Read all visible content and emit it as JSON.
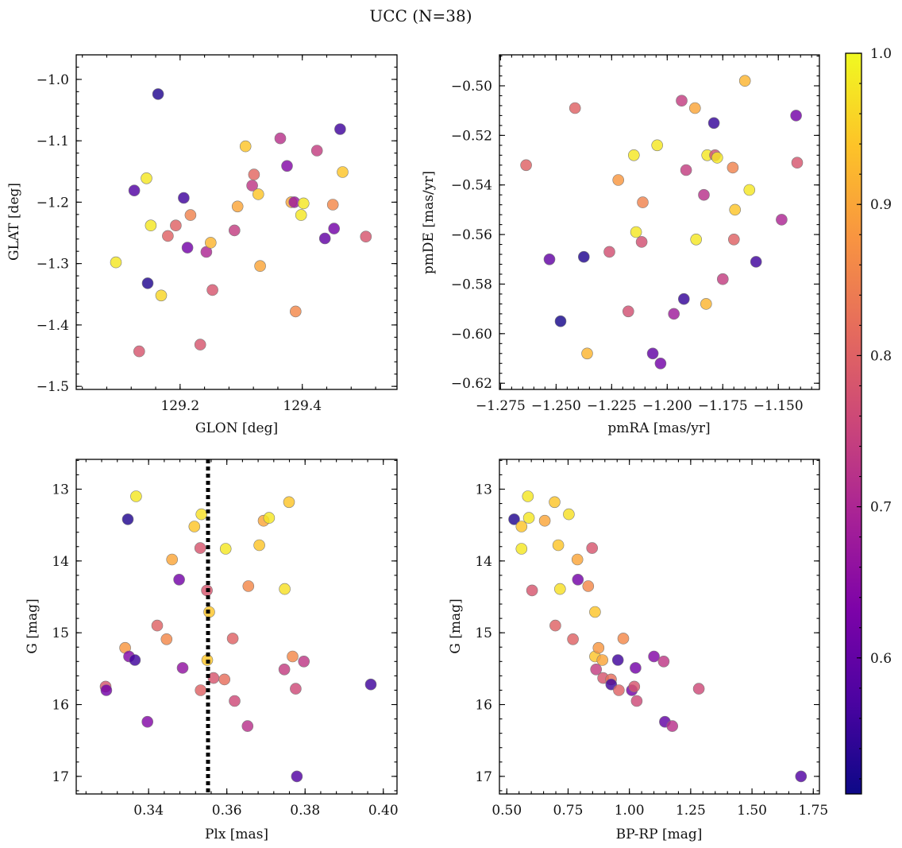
{
  "figure": {
    "title": "UCC (N=38)"
  },
  "colorbar": {
    "colormap": "plasma",
    "range": [
      0.51,
      1.0
    ],
    "ticks": [
      0.6,
      0.7,
      0.8,
      0.9,
      1.0
    ],
    "tick_labels": [
      "0.6",
      "0.7",
      "0.8",
      "0.9",
      "1.0"
    ]
  },
  "chart_data": [
    {
      "type": "scatter",
      "title": "",
      "xlabel": "GLON [deg]",
      "ylabel": "GLAT [deg]",
      "xlim": [
        129.03,
        129.555
      ],
      "ylim": [
        -1.505,
        -0.96
      ],
      "y_inverted": false,
      "xticks": [
        129.2,
        129.4
      ],
      "xtick_labels": [
        "129.2",
        "129.4"
      ],
      "yticks": [
        -1.5,
        -1.4,
        -1.3,
        -1.2,
        -1.1,
        -1.0
      ],
      "ytick_labels": [
        "−1.5",
        "−1.4",
        "−1.3",
        "−1.2",
        "−1.1",
        "−1.0"
      ],
      "points": [
        {
          "x": 129.095,
          "y": -1.298,
          "c": 0.98
        },
        {
          "x": 129.125,
          "y": -1.181,
          "c": 0.58
        },
        {
          "x": 129.133,
          "y": -1.443,
          "c": 0.78
        },
        {
          "x": 129.145,
          "y": -1.161,
          "c": 0.98
        },
        {
          "x": 129.147,
          "y": -1.332,
          "c": 0.53
        },
        {
          "x": 129.152,
          "y": -1.238,
          "c": 0.98
        },
        {
          "x": 129.164,
          "y": -1.024,
          "c": 0.53
        },
        {
          "x": 129.169,
          "y": -1.352,
          "c": 0.96
        },
        {
          "x": 129.18,
          "y": -1.255,
          "c": 0.8
        },
        {
          "x": 129.193,
          "y": -1.238,
          "c": 0.8
        },
        {
          "x": 129.206,
          "y": -1.193,
          "c": 0.56
        },
        {
          "x": 129.212,
          "y": -1.274,
          "c": 0.62
        },
        {
          "x": 129.217,
          "y": -1.221,
          "c": 0.85
        },
        {
          "x": 129.233,
          "y": -1.432,
          "c": 0.78
        },
        {
          "x": 129.243,
          "y": -1.281,
          "c": 0.7
        },
        {
          "x": 129.25,
          "y": -1.266,
          "c": 0.92
        },
        {
          "x": 129.253,
          "y": -1.343,
          "c": 0.78
        },
        {
          "x": 129.289,
          "y": -1.246,
          "c": 0.74
        },
        {
          "x": 129.294,
          "y": -1.207,
          "c": 0.9
        },
        {
          "x": 129.307,
          "y": -1.109,
          "c": 0.94
        },
        {
          "x": 129.318,
          "y": -1.173,
          "c": 0.73
        },
        {
          "x": 129.321,
          "y": -1.155,
          "c": 0.81
        },
        {
          "x": 129.328,
          "y": -1.187,
          "c": 0.94
        },
        {
          "x": 129.331,
          "y": -1.304,
          "c": 0.9
        },
        {
          "x": 129.364,
          "y": -1.096,
          "c": 0.72
        },
        {
          "x": 129.375,
          "y": -1.141,
          "c": 0.64
        },
        {
          "x": 129.382,
          "y": -1.2,
          "c": 0.9
        },
        {
          "x": 129.387,
          "y": -1.2,
          "c": 0.67
        },
        {
          "x": 129.389,
          "y": -1.378,
          "c": 0.86
        },
        {
          "x": 129.398,
          "y": -1.221,
          "c": 0.98
        },
        {
          "x": 129.402,
          "y": -1.202,
          "c": 0.98
        },
        {
          "x": 129.424,
          "y": -1.116,
          "c": 0.74
        },
        {
          "x": 129.437,
          "y": -1.259,
          "c": 0.6
        },
        {
          "x": 129.45,
          "y": -1.204,
          "c": 0.86
        },
        {
          "x": 129.452,
          "y": -1.243,
          "c": 0.62
        },
        {
          "x": 129.462,
          "y": -1.081,
          "c": 0.56
        },
        {
          "x": 129.466,
          "y": -1.151,
          "c": 0.94
        },
        {
          "x": 129.504,
          "y": -1.256,
          "c": 0.78
        }
      ]
    },
    {
      "type": "scatter",
      "title": "",
      "xlabel": "pmRA [mas/yr]",
      "ylabel": "pmDE [mas/yr]",
      "xlim": [
        -1.2755,
        -1.1315
      ],
      "ylim": [
        -0.6225,
        -0.4875
      ],
      "y_inverted": false,
      "xticks": [
        -1.275,
        -1.25,
        -1.225,
        -1.2,
        -1.175,
        -1.15
      ],
      "xtick_labels": [
        "−1.275",
        "−1.250",
        "−1.225",
        "−1.200",
        "−1.175",
        "−1.150"
      ],
      "yticks": [
        -0.62,
        -0.6,
        -0.58,
        -0.56,
        -0.54,
        -0.52,
        -0.5
      ],
      "ytick_labels": [
        "−0.62",
        "−0.60",
        "−0.58",
        "−0.56",
        "−0.54",
        "−0.52",
        "−0.50"
      ],
      "points": [
        {
          "x": -1.2635,
          "y": -0.532,
          "c": 0.8
        },
        {
          "x": -1.253,
          "y": -0.57,
          "c": 0.6
        },
        {
          "x": -1.248,
          "y": -0.595,
          "c": 0.52
        },
        {
          "x": -1.2415,
          "y": -0.509,
          "c": 0.8
        },
        {
          "x": -1.2375,
          "y": -0.569,
          "c": 0.53
        },
        {
          "x": -1.236,
          "y": -0.608,
          "c": 0.92
        },
        {
          "x": -1.226,
          "y": -0.567,
          "c": 0.77
        },
        {
          "x": -1.222,
          "y": -0.538,
          "c": 0.88
        },
        {
          "x": -1.2175,
          "y": -0.591,
          "c": 0.77
        },
        {
          "x": -1.215,
          "y": -0.528,
          "c": 0.98
        },
        {
          "x": -1.214,
          "y": -0.559,
          "c": 0.98
        },
        {
          "x": -1.2115,
          "y": -0.563,
          "c": 0.77
        },
        {
          "x": -1.211,
          "y": -0.547,
          "c": 0.85
        },
        {
          "x": -1.2065,
          "y": -0.608,
          "c": 0.6
        },
        {
          "x": -1.2045,
          "y": -0.524,
          "c": 0.98
        },
        {
          "x": -1.203,
          "y": -0.612,
          "c": 0.62
        },
        {
          "x": -1.197,
          "y": -0.592,
          "c": 0.68
        },
        {
          "x": -1.1935,
          "y": -0.506,
          "c": 0.74
        },
        {
          "x": -1.1925,
          "y": -0.586,
          "c": 0.55
        },
        {
          "x": -1.1915,
          "y": -0.534,
          "c": 0.74
        },
        {
          "x": -1.1875,
          "y": -0.509,
          "c": 0.9
        },
        {
          "x": -1.187,
          "y": -0.562,
          "c": 0.98
        },
        {
          "x": -1.1835,
          "y": -0.544,
          "c": 0.72
        },
        {
          "x": -1.1825,
          "y": -0.588,
          "c": 0.92
        },
        {
          "x": -1.182,
          "y": -0.528,
          "c": 0.98
        },
        {
          "x": -1.179,
          "y": -0.515,
          "c": 0.55
        },
        {
          "x": -1.1785,
          "y": -0.528,
          "c": 0.77
        },
        {
          "x": -1.1775,
          "y": -0.529,
          "c": 0.98
        },
        {
          "x": -1.175,
          "y": -0.578,
          "c": 0.74
        },
        {
          "x": -1.1705,
          "y": -0.533,
          "c": 0.85
        },
        {
          "x": -1.17,
          "y": -0.562,
          "c": 0.8
        },
        {
          "x": -1.1695,
          "y": -0.55,
          "c": 0.94
        },
        {
          "x": -1.165,
          "y": -0.498,
          "c": 0.92
        },
        {
          "x": -1.163,
          "y": -0.542,
          "c": 0.98
        },
        {
          "x": -1.16,
          "y": -0.571,
          "c": 0.56
        },
        {
          "x": -1.1485,
          "y": -0.554,
          "c": 0.7
        },
        {
          "x": -1.142,
          "y": -0.512,
          "c": 0.62
        },
        {
          "x": -1.1415,
          "y": -0.531,
          "c": 0.78
        }
      ]
    },
    {
      "type": "scatter",
      "title": "",
      "xlabel": "Plx [mas]",
      "ylabel": "G [mag]",
      "xlim": [
        0.3215,
        0.4035
      ],
      "ylim": [
        17.245,
        12.585
      ],
      "y_inverted": true,
      "xticks": [
        0.34,
        0.36,
        0.38,
        0.4
      ],
      "xtick_labels": [
        "0.34",
        "0.36",
        "0.38",
        "0.40"
      ],
      "yticks": [
        13,
        14,
        15,
        16,
        17
      ],
      "ytick_labels": [
        "13",
        "14",
        "15",
        "16",
        "17"
      ],
      "reference_line": {
        "x": 0.3552,
        "style": "dotted",
        "color": "#000000"
      },
      "points": [
        {
          "x": 0.329,
          "y": 15.75,
          "c": 0.78
        },
        {
          "x": 0.3292,
          "y": 15.8,
          "c": 0.62
        },
        {
          "x": 0.334,
          "y": 15.21,
          "c": 0.88
        },
        {
          "x": 0.3347,
          "y": 13.42,
          "c": 0.53
        },
        {
          "x": 0.335,
          "y": 15.33,
          "c": 0.64
        },
        {
          "x": 0.3365,
          "y": 15.38,
          "c": 0.56
        },
        {
          "x": 0.3368,
          "y": 13.1,
          "c": 0.98
        },
        {
          "x": 0.3397,
          "y": 16.24,
          "c": 0.64
        },
        {
          "x": 0.3422,
          "y": 14.9,
          "c": 0.8
        },
        {
          "x": 0.3446,
          "y": 15.09,
          "c": 0.86
        },
        {
          "x": 0.346,
          "y": 13.98,
          "c": 0.9
        },
        {
          "x": 0.3478,
          "y": 14.26,
          "c": 0.62
        },
        {
          "x": 0.3487,
          "y": 15.49,
          "c": 0.66
        },
        {
          "x": 0.3517,
          "y": 13.52,
          "c": 0.94
        },
        {
          "x": 0.3532,
          "y": 13.82,
          "c": 0.78
        },
        {
          "x": 0.3533,
          "y": 15.8,
          "c": 0.8
        },
        {
          "x": 0.3535,
          "y": 13.35,
          "c": 0.97
        },
        {
          "x": 0.3549,
          "y": 14.41,
          "c": 0.78
        },
        {
          "x": 0.355,
          "y": 15.38,
          "c": 0.94
        },
        {
          "x": 0.3555,
          "y": 14.71,
          "c": 0.94
        },
        {
          "x": 0.3566,
          "y": 15.63,
          "c": 0.78
        },
        {
          "x": 0.3594,
          "y": 15.65,
          "c": 0.82
        },
        {
          "x": 0.3597,
          "y": 13.83,
          "c": 0.98
        },
        {
          "x": 0.3615,
          "y": 15.08,
          "c": 0.8
        },
        {
          "x": 0.362,
          "y": 15.95,
          "c": 0.76
        },
        {
          "x": 0.3653,
          "y": 16.3,
          "c": 0.72
        },
        {
          "x": 0.3655,
          "y": 14.35,
          "c": 0.86
        },
        {
          "x": 0.3683,
          "y": 13.78,
          "c": 0.94
        },
        {
          "x": 0.3694,
          "y": 13.44,
          "c": 0.9
        },
        {
          "x": 0.3708,
          "y": 13.4,
          "c": 0.98
        },
        {
          "x": 0.3747,
          "y": 15.51,
          "c": 0.74
        },
        {
          "x": 0.3748,
          "y": 14.39,
          "c": 0.97
        },
        {
          "x": 0.3759,
          "y": 13.18,
          "c": 0.94
        },
        {
          "x": 0.3768,
          "y": 15.33,
          "c": 0.86
        },
        {
          "x": 0.3776,
          "y": 15.78,
          "c": 0.76
        },
        {
          "x": 0.3779,
          "y": 17.0,
          "c": 0.58
        },
        {
          "x": 0.3797,
          "y": 15.4,
          "c": 0.73
        },
        {
          "x": 0.3968,
          "y": 15.72,
          "c": 0.56
        }
      ]
    },
    {
      "type": "scatter",
      "title": "",
      "xlabel": "BP-RP [mag]",
      "ylabel": "G [mag]",
      "xlim": [
        0.47,
        1.775
      ],
      "ylim": [
        17.245,
        12.585
      ],
      "y_inverted": true,
      "xticks": [
        0.5,
        0.75,
        1.0,
        1.25,
        1.5,
        1.75
      ],
      "xtick_labels": [
        "0.50",
        "0.75",
        "1.00",
        "1.25",
        "1.50",
        "1.75"
      ],
      "yticks": [
        13,
        14,
        15,
        16,
        17
      ],
      "ytick_labels": [
        "13",
        "14",
        "15",
        "16",
        "17"
      ],
      "points": [
        {
          "x": 0.53,
          "y": 13.42,
          "c": 0.53
        },
        {
          "x": 0.56,
          "y": 13.52,
          "c": 0.94
        },
        {
          "x": 0.56,
          "y": 13.83,
          "c": 0.98
        },
        {
          "x": 0.586,
          "y": 13.1,
          "c": 0.98
        },
        {
          "x": 0.59,
          "y": 13.4,
          "c": 0.98
        },
        {
          "x": 0.603,
          "y": 14.41,
          "c": 0.78
        },
        {
          "x": 0.655,
          "y": 13.44,
          "c": 0.9
        },
        {
          "x": 0.695,
          "y": 13.18,
          "c": 0.94
        },
        {
          "x": 0.698,
          "y": 14.9,
          "c": 0.8
        },
        {
          "x": 0.71,
          "y": 13.78,
          "c": 0.94
        },
        {
          "x": 0.717,
          "y": 14.39,
          "c": 0.97
        },
        {
          "x": 0.753,
          "y": 13.35,
          "c": 0.97
        },
        {
          "x": 0.77,
          "y": 15.09,
          "c": 0.8
        },
        {
          "x": 0.788,
          "y": 13.98,
          "c": 0.9
        },
        {
          "x": 0.79,
          "y": 14.26,
          "c": 0.62
        },
        {
          "x": 0.832,
          "y": 14.35,
          "c": 0.86
        },
        {
          "x": 0.848,
          "y": 13.82,
          "c": 0.78
        },
        {
          "x": 0.86,
          "y": 14.71,
          "c": 0.94
        },
        {
          "x": 0.86,
          "y": 15.33,
          "c": 0.94
        },
        {
          "x": 0.864,
          "y": 15.51,
          "c": 0.74
        },
        {
          "x": 0.874,
          "y": 15.21,
          "c": 0.88
        },
        {
          "x": 0.89,
          "y": 15.38,
          "c": 0.9
        },
        {
          "x": 0.893,
          "y": 15.63,
          "c": 0.78
        },
        {
          "x": 0.925,
          "y": 15.65,
          "c": 0.82
        },
        {
          "x": 0.926,
          "y": 15.72,
          "c": 0.56
        },
        {
          "x": 0.953,
          "y": 15.38,
          "c": 0.56
        },
        {
          "x": 0.957,
          "y": 15.8,
          "c": 0.8
        },
        {
          "x": 0.975,
          "y": 15.08,
          "c": 0.86
        },
        {
          "x": 1.01,
          "y": 15.8,
          "c": 0.62
        },
        {
          "x": 1.02,
          "y": 15.75,
          "c": 0.78
        },
        {
          "x": 1.025,
          "y": 15.49,
          "c": 0.62
        },
        {
          "x": 1.03,
          "y": 15.95,
          "c": 0.76
        },
        {
          "x": 1.1,
          "y": 15.33,
          "c": 0.64
        },
        {
          "x": 1.14,
          "y": 15.4,
          "c": 0.73
        },
        {
          "x": 1.145,
          "y": 16.24,
          "c": 0.6
        },
        {
          "x": 1.175,
          "y": 16.3,
          "c": 0.72
        },
        {
          "x": 1.283,
          "y": 15.78,
          "c": 0.76
        },
        {
          "x": 1.7,
          "y": 17.0,
          "c": 0.58
        }
      ]
    }
  ]
}
